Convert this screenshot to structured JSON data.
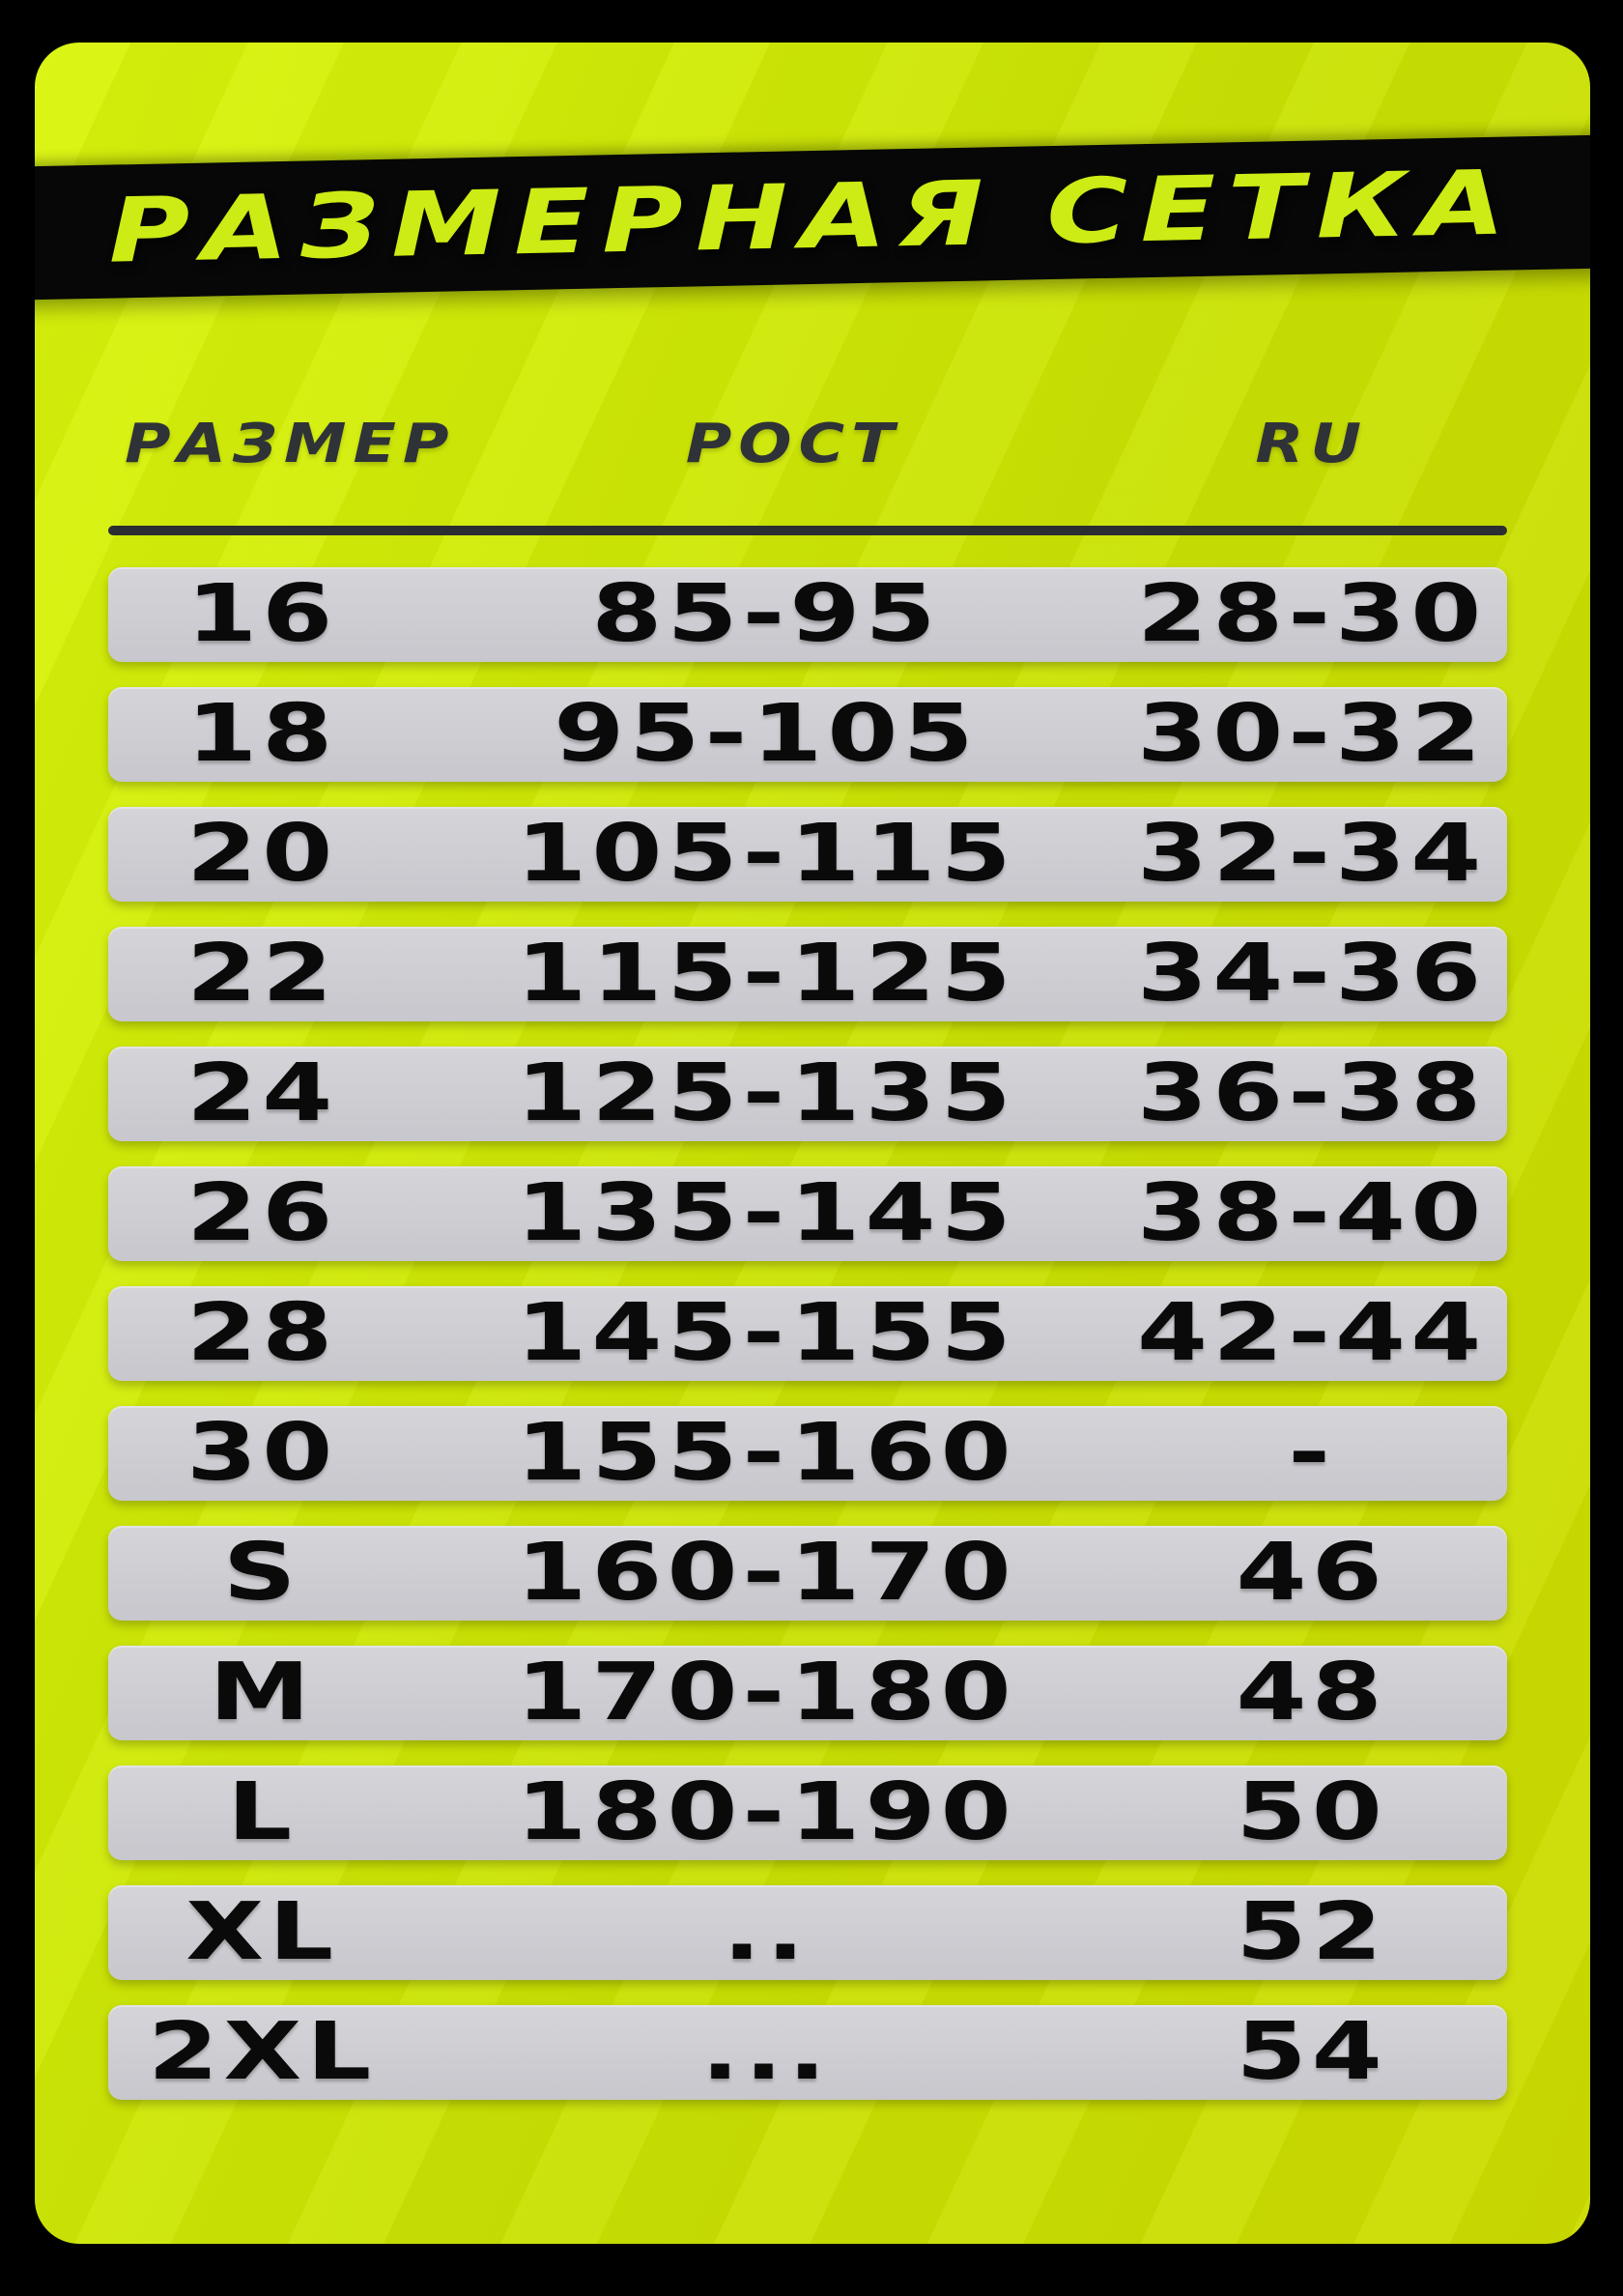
{
  "poster": {
    "title": "РАЗМЕРНАЯ СЕТКА"
  },
  "table": {
    "headers": {
      "size": "РАЗМЕР",
      "height": "РОСТ",
      "ru": "RU"
    }
  },
  "colors": {
    "page_background": "#000000",
    "card_green": "#cfe906",
    "band_black": "#070707",
    "title_green": "#cdeb14",
    "header_text": "#2f3338",
    "rule_dark": "#2a2d31",
    "row_gray": "#cbcad0",
    "row_text": "#0a0a0a"
  },
  "chart_data": {
    "type": "table",
    "title": "РАЗМЕРНАЯ СЕТКА",
    "columns": [
      "РАЗМЕР",
      "РОСТ",
      "RU"
    ],
    "rows": [
      [
        "16",
        "85-95",
        "28-30"
      ],
      [
        "18",
        "95-105",
        "30-32"
      ],
      [
        "20",
        "105-115",
        "32-34"
      ],
      [
        "22",
        "115-125",
        "34-36"
      ],
      [
        "24",
        "125-135",
        "36-38"
      ],
      [
        "26",
        "135-145",
        "38-40"
      ],
      [
        "28",
        "145-155",
        "42-44"
      ],
      [
        "30",
        "155-160",
        "-"
      ],
      [
        "S",
        "160-170",
        "46"
      ],
      [
        "M",
        "170-180",
        "48"
      ],
      [
        "L",
        "180-190",
        "50"
      ],
      [
        "XL",
        "..",
        "52"
      ],
      [
        "2XL",
        "...",
        "54"
      ]
    ],
    "layout": {
      "grid": false,
      "row_style": "gray rounded bars on lime card",
      "title_band_rotation_deg": -1.15
    }
  }
}
